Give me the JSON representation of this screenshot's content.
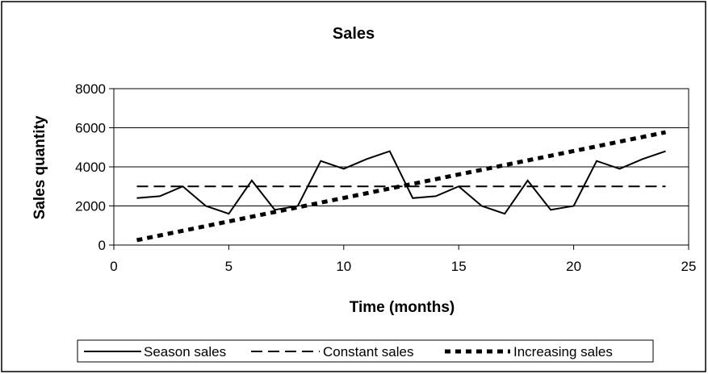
{
  "chart_data": {
    "type": "line",
    "title": "Sales",
    "xlabel": "Time (months)",
    "ylabel": "Sales quantity",
    "xlim": [
      0,
      25
    ],
    "ylim": [
      0,
      8000
    ],
    "xticks": [
      0,
      5,
      10,
      15,
      20,
      25
    ],
    "yticks": [
      0,
      2000,
      4000,
      6000,
      8000
    ],
    "grid": "horizontal",
    "legend_position": "bottom",
    "x": [
      1,
      2,
      3,
      4,
      5,
      6,
      7,
      8,
      9,
      10,
      11,
      12,
      13,
      14,
      15,
      16,
      17,
      18,
      19,
      20,
      21,
      22,
      23,
      24
    ],
    "series": [
      {
        "name": "Season sales",
        "style": "solid",
        "color": "#000000",
        "values": [
          2400,
          2500,
          3000,
          2000,
          1600,
          3300,
          1800,
          2000,
          4300,
          3900,
          4400,
          4800,
          2400,
          2500,
          3000,
          2000,
          1600,
          3300,
          1800,
          2000,
          4300,
          3900,
          4400,
          4800
        ]
      },
      {
        "name": "Constant sales",
        "style": "dashed",
        "color": "#000000",
        "values": [
          3000,
          3000,
          3000,
          3000,
          3000,
          3000,
          3000,
          3000,
          3000,
          3000,
          3000,
          3000,
          3000,
          3000,
          3000,
          3000,
          3000,
          3000,
          3000,
          3000,
          3000,
          3000,
          3000,
          3000
        ]
      },
      {
        "name": "Increasing sales",
        "style": "dotted-thick",
        "color": "#000000",
        "values": [
          250,
          490,
          730,
          970,
          1210,
          1450,
          1690,
          1930,
          2170,
          2410,
          2650,
          2890,
          3130,
          3370,
          3610,
          3850,
          4090,
          4330,
          4570,
          4810,
          5050,
          5290,
          5530,
          5770
        ]
      }
    ]
  }
}
